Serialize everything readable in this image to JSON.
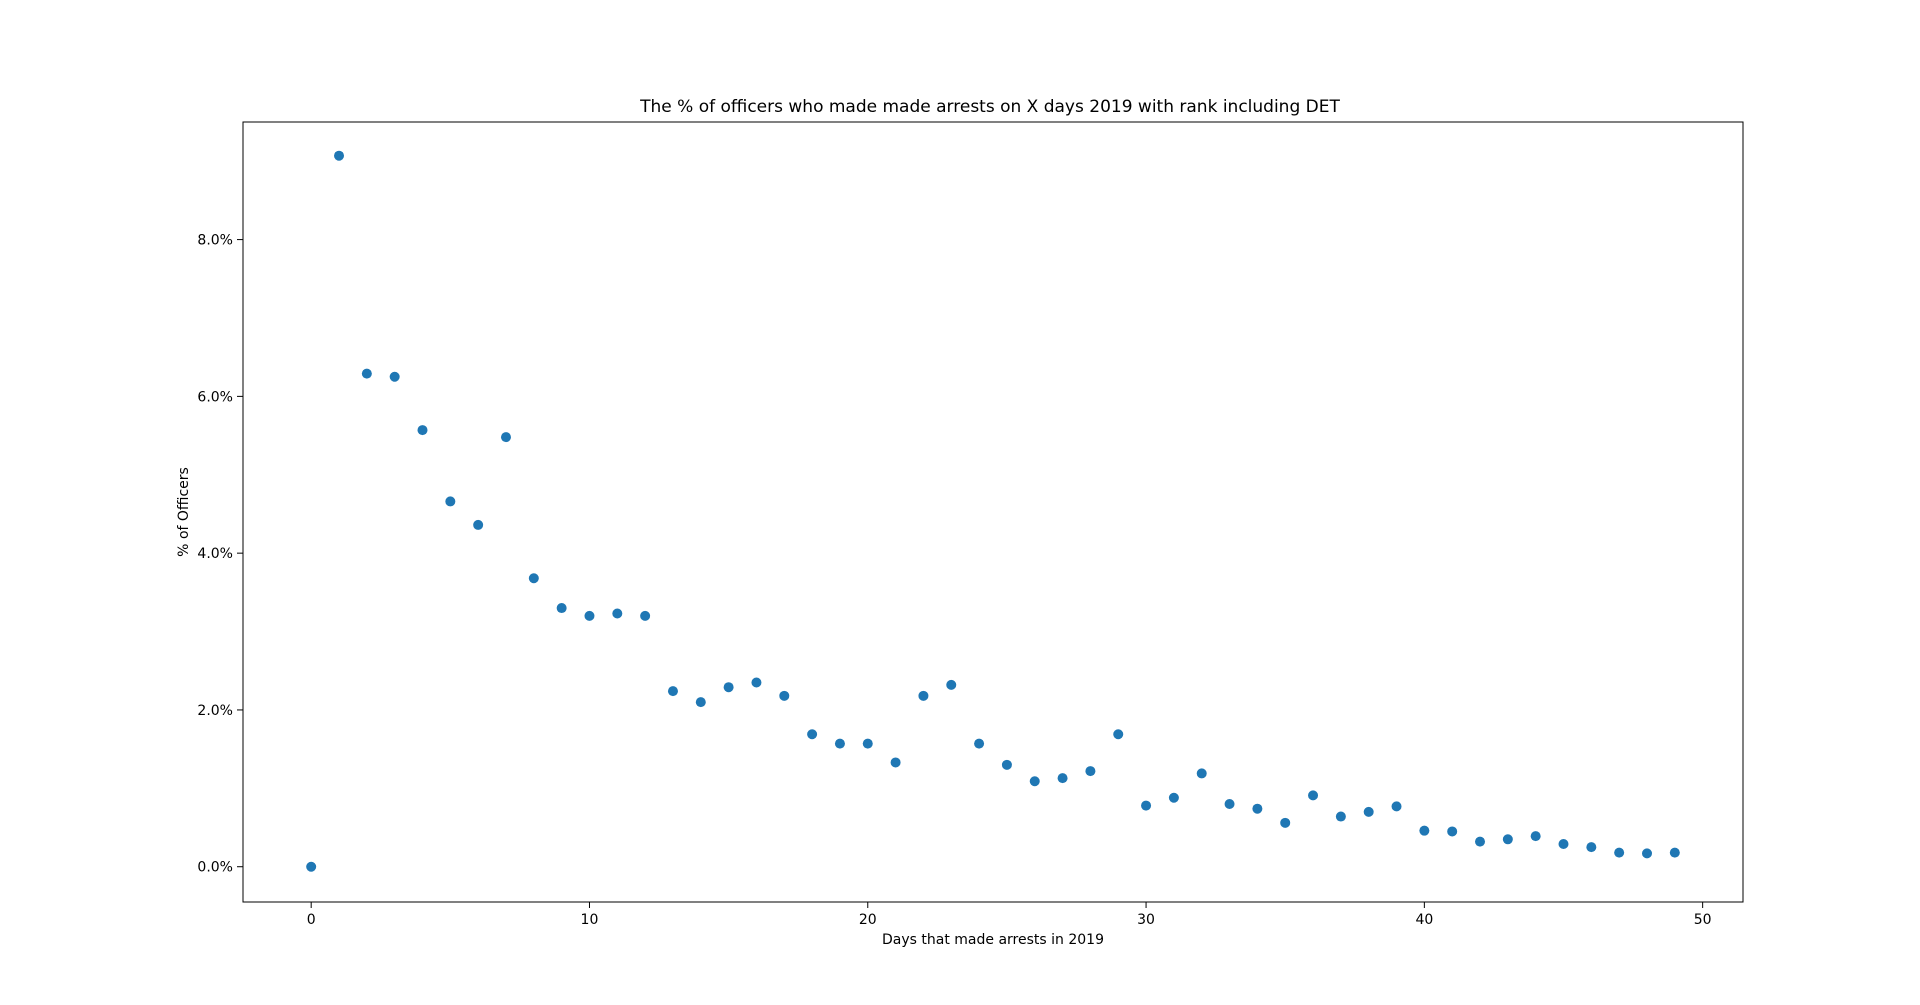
{
  "chart_data": {
    "type": "scatter",
    "title": "The % of officers who made made arrests on X days 2019 with rank including DET",
    "xlabel": "Days that made arrests in 2019",
    "ylabel": "% of Officers",
    "xlim": [
      -2.45,
      51.45
    ],
    "ylim": [
      -0.45,
      9.5
    ],
    "xticks": [
      0,
      10,
      20,
      30,
      40,
      50
    ],
    "xtick_labels": [
      "0",
      "10",
      "20",
      "30",
      "40",
      "50"
    ],
    "yticks": [
      0,
      2,
      4,
      6,
      8
    ],
    "ytick_labels": [
      "0.0%",
      "2.0%",
      "4.0%",
      "6.0%",
      "8.0%"
    ],
    "grid": false,
    "marker_color": "#1f77b4",
    "x": [
      0,
      1,
      2,
      3,
      4,
      5,
      6,
      7,
      8,
      9,
      10,
      11,
      12,
      13,
      14,
      15,
      16,
      17,
      18,
      19,
      20,
      21,
      22,
      23,
      24,
      25,
      26,
      27,
      28,
      29,
      30,
      31,
      32,
      33,
      34,
      35,
      36,
      37,
      38,
      39,
      40,
      41,
      42,
      43,
      44,
      45,
      46,
      47,
      48,
      49
    ],
    "y": [
      0.0,
      9.07,
      6.29,
      6.25,
      5.57,
      4.66,
      4.36,
      5.48,
      3.68,
      3.3,
      3.2,
      3.23,
      3.2,
      2.24,
      2.1,
      2.29,
      2.35,
      2.18,
      1.69,
      1.57,
      1.57,
      1.33,
      2.18,
      2.32,
      1.57,
      1.3,
      1.09,
      1.13,
      1.22,
      1.69,
      0.78,
      0.88,
      1.19,
      0.8,
      0.74,
      0.56,
      0.91,
      0.64,
      0.7,
      0.77,
      0.46,
      0.45,
      0.32,
      0.35,
      0.39,
      0.29,
      0.25,
      0.18,
      0.17,
      0.18
    ]
  }
}
